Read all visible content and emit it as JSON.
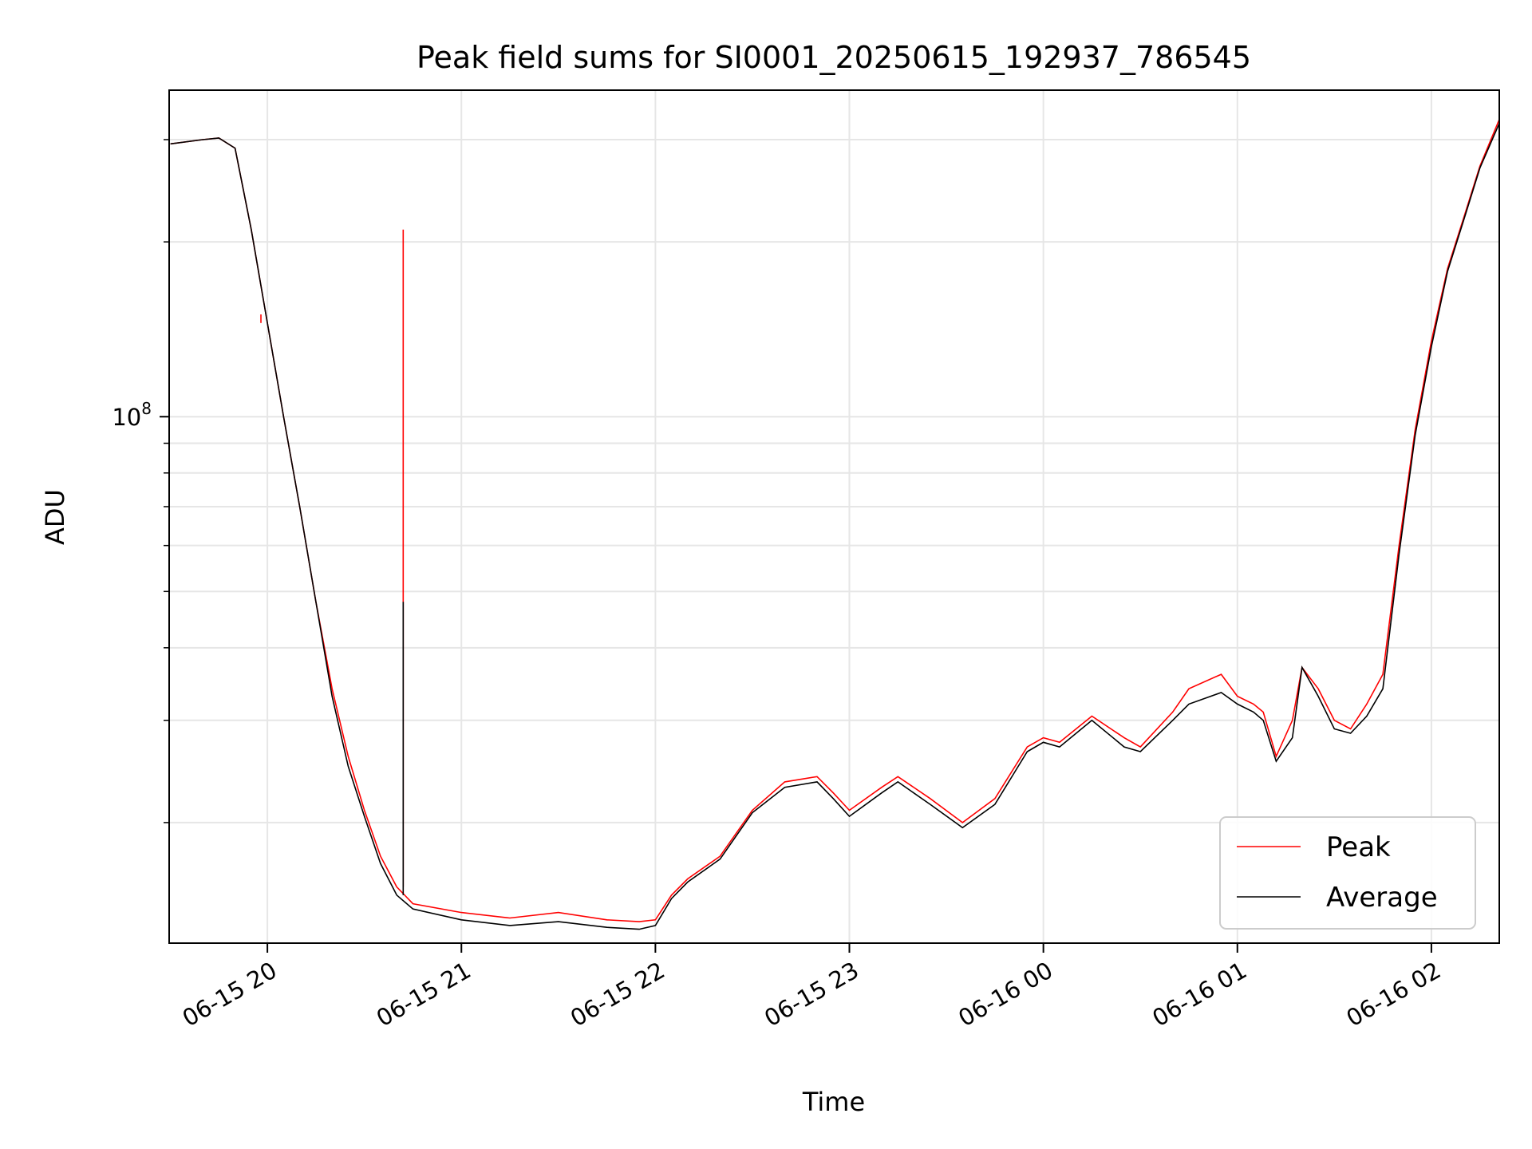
{
  "chart_data": {
    "type": "line",
    "title": "Peak field sums for SI0001_20250615_192937_786545",
    "xlabel": "Time",
    "ylabel": "ADU",
    "yscale": "log",
    "ylim": [
      12400000,
      365000000
    ],
    "xlim": [
      "2025-06-15 19:29:37",
      "2025-06-16 02:21:00"
    ],
    "x_ticks": [
      "06-15 20",
      "06-15 21",
      "06-15 22",
      "06-15 23",
      "06-16 00",
      "06-16 01",
      "06-16 02"
    ],
    "y_ticks": [
      {
        "value": 100000000,
        "label": "10",
        "exponent": "8"
      }
    ],
    "grid": true,
    "legend": {
      "position": "lower right"
    },
    "colors": {
      "Peak": "#ff0000",
      "Average": "#000000"
    },
    "series": [
      {
        "name": "Peak",
        "x": [
          "2025-06-15 19:30",
          "2025-06-15 19:40",
          "2025-06-15 19:45",
          "2025-06-15 19:50",
          "2025-06-15 19:55",
          "2025-06-15 20:00",
          "2025-06-15 20:05",
          "2025-06-15 20:10",
          "2025-06-15 20:15",
          "2025-06-15 20:20",
          "2025-06-15 20:25",
          "2025-06-15 20:30",
          "2025-06-15 20:35",
          "2025-06-15 20:40",
          "2025-06-15 20:45",
          "2025-06-15 21:00",
          "2025-06-15 21:15",
          "2025-06-15 21:30",
          "2025-06-15 21:45",
          "2025-06-15 21:55",
          "2025-06-15 22:00",
          "2025-06-15 22:05",
          "2025-06-15 22:10",
          "2025-06-15 22:20",
          "2025-06-15 22:30",
          "2025-06-15 22:40",
          "2025-06-15 22:50",
          "2025-06-15 22:55",
          "2025-06-15 23:00",
          "2025-06-15 23:10",
          "2025-06-15 23:15",
          "2025-06-15 23:25",
          "2025-06-15 23:35",
          "2025-06-15 23:45",
          "2025-06-15 23:55",
          "2025-06-16 00:00",
          "2025-06-16 00:05",
          "2025-06-16 00:15",
          "2025-06-16 00:25",
          "2025-06-16 00:30",
          "2025-06-16 00:40",
          "2025-06-16 00:45",
          "2025-06-16 00:55",
          "2025-06-16 01:00",
          "2025-06-16 01:05",
          "2025-06-16 01:08",
          "2025-06-16 01:12",
          "2025-06-16 01:17",
          "2025-06-16 01:20",
          "2025-06-16 01:25",
          "2025-06-16 01:30",
          "2025-06-16 01:35",
          "2025-06-16 01:40",
          "2025-06-16 01:45",
          "2025-06-16 01:50",
          "2025-06-16 01:55",
          "2025-06-16 02:00",
          "2025-06-16 02:05",
          "2025-06-16 02:10",
          "2025-06-16 02:15",
          "2025-06-16 02:21"
        ],
        "y": [
          295000000,
          300000000,
          302000000,
          290000000,
          210000000,
          145000000,
          100000000,
          70000000,
          48000000,
          34000000,
          26000000,
          21000000,
          17500000,
          15500000,
          14500000,
          14000000,
          13700000,
          14000000,
          13600000,
          13500000,
          13600000,
          15000000,
          16000000,
          17500000,
          21000000,
          23500000,
          24000000,
          22500000,
          21000000,
          23000000,
          24000000,
          22000000,
          20000000,
          22000000,
          27000000,
          28000000,
          27500000,
          30500000,
          28000000,
          27000000,
          31000000,
          34000000,
          36000000,
          33000000,
          32000000,
          31000000,
          26000000,
          30000000,
          37000000,
          34000000,
          30000000,
          29000000,
          32000000,
          36000000,
          60000000,
          95000000,
          135000000,
          180000000,
          220000000,
          270000000,
          325000000
        ]
      },
      {
        "name": "Average",
        "x": [
          "2025-06-15 19:30",
          "2025-06-15 19:40",
          "2025-06-15 19:45",
          "2025-06-15 19:50",
          "2025-06-15 19:55",
          "2025-06-15 20:00",
          "2025-06-15 20:05",
          "2025-06-15 20:10",
          "2025-06-15 20:15",
          "2025-06-15 20:20",
          "2025-06-15 20:25",
          "2025-06-15 20:30",
          "2025-06-15 20:35",
          "2025-06-15 20:40",
          "2025-06-15 20:45",
          "2025-06-15 21:00",
          "2025-06-15 21:15",
          "2025-06-15 21:30",
          "2025-06-15 21:45",
          "2025-06-15 21:55",
          "2025-06-15 22:00",
          "2025-06-15 22:05",
          "2025-06-15 22:10",
          "2025-06-15 22:20",
          "2025-06-15 22:30",
          "2025-06-15 22:40",
          "2025-06-15 22:50",
          "2025-06-15 22:55",
          "2025-06-15 23:00",
          "2025-06-15 23:10",
          "2025-06-15 23:15",
          "2025-06-15 23:25",
          "2025-06-15 23:35",
          "2025-06-15 23:45",
          "2025-06-15 23:55",
          "2025-06-16 00:00",
          "2025-06-16 00:05",
          "2025-06-16 00:15",
          "2025-06-16 00:25",
          "2025-06-16 00:30",
          "2025-06-16 00:40",
          "2025-06-16 00:45",
          "2025-06-16 00:55",
          "2025-06-16 01:00",
          "2025-06-16 01:05",
          "2025-06-16 01:08",
          "2025-06-16 01:12",
          "2025-06-16 01:17",
          "2025-06-16 01:20",
          "2025-06-16 01:25",
          "2025-06-16 01:30",
          "2025-06-16 01:35",
          "2025-06-16 01:40",
          "2025-06-16 01:45",
          "2025-06-16 01:50",
          "2025-06-16 01:55",
          "2025-06-16 02:00",
          "2025-06-16 02:05",
          "2025-06-16 02:10",
          "2025-06-16 02:15",
          "2025-06-16 02:21"
        ],
        "y": [
          295000000,
          300000000,
          302000000,
          290000000,
          210000000,
          145000000,
          100000000,
          70000000,
          48000000,
          33000000,
          25000000,
          20500000,
          17000000,
          15000000,
          14200000,
          13600000,
          13300000,
          13500000,
          13200000,
          13100000,
          13300000,
          14800000,
          15800000,
          17300000,
          20800000,
          23000000,
          23500000,
          22000000,
          20500000,
          22500000,
          23500000,
          21500000,
          19600000,
          21500000,
          26500000,
          27500000,
          27000000,
          30000000,
          27000000,
          26500000,
          30000000,
          32000000,
          33500000,
          32000000,
          31000000,
          30000000,
          25500000,
          28000000,
          37000000,
          33000000,
          29000000,
          28500000,
          30500000,
          34000000,
          58000000,
          93000000,
          132000000,
          178000000,
          218000000,
          268000000,
          320000000
        ]
      }
    ],
    "annotations": [
      {
        "series": "Peak",
        "x": "2025-06-15 20:42",
        "y": 210000000
      },
      {
        "series": "Average",
        "x": "2025-06-15 20:42",
        "y": 48000000
      },
      {
        "series": "Peak",
        "x": "2025-06-15 19:58",
        "y": 150000000
      }
    ]
  }
}
